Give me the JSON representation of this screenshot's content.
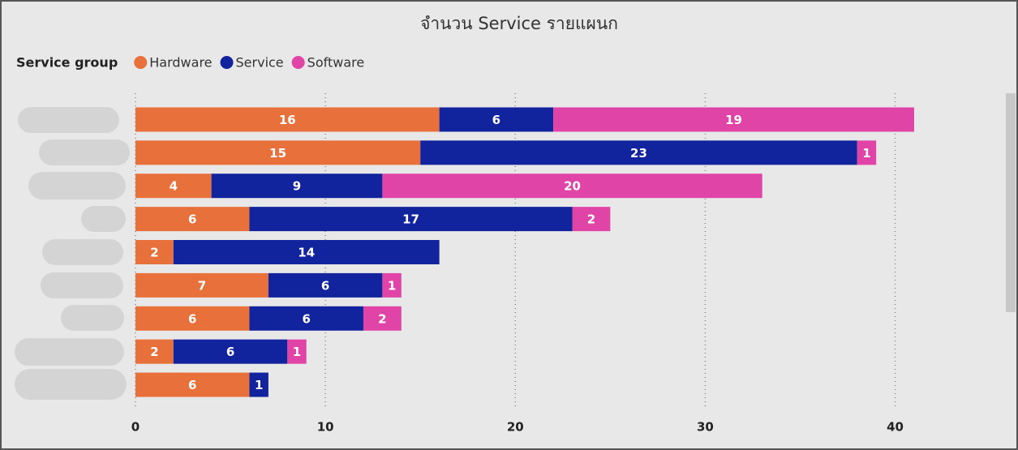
{
  "chart_data": {
    "type": "bar",
    "orientation": "horizontal",
    "stacked": true,
    "title": "จำนวน Service รายแผนก",
    "legend_title": "Service group",
    "legend_position": "top-left",
    "categories": [
      null,
      null,
      null,
      null,
      null,
      null,
      null,
      null,
      null
    ],
    "series": [
      {
        "name": "Hardware",
        "color": "#e8703a",
        "values": [
          16,
          15,
          4,
          6,
          2,
          7,
          6,
          2,
          6
        ]
      },
      {
        "name": "Service",
        "color": "#12239e",
        "values": [
          6,
          23,
          9,
          17,
          14,
          6,
          6,
          6,
          1
        ]
      },
      {
        "name": "Software",
        "color": "#e044a7",
        "values": [
          19,
          1,
          20,
          2,
          null,
          1,
          2,
          1,
          null
        ]
      }
    ],
    "xlim": [
      0,
      45.4
    ],
    "xticks": [
      0,
      10,
      20,
      30,
      40
    ],
    "grid": true
  }
}
